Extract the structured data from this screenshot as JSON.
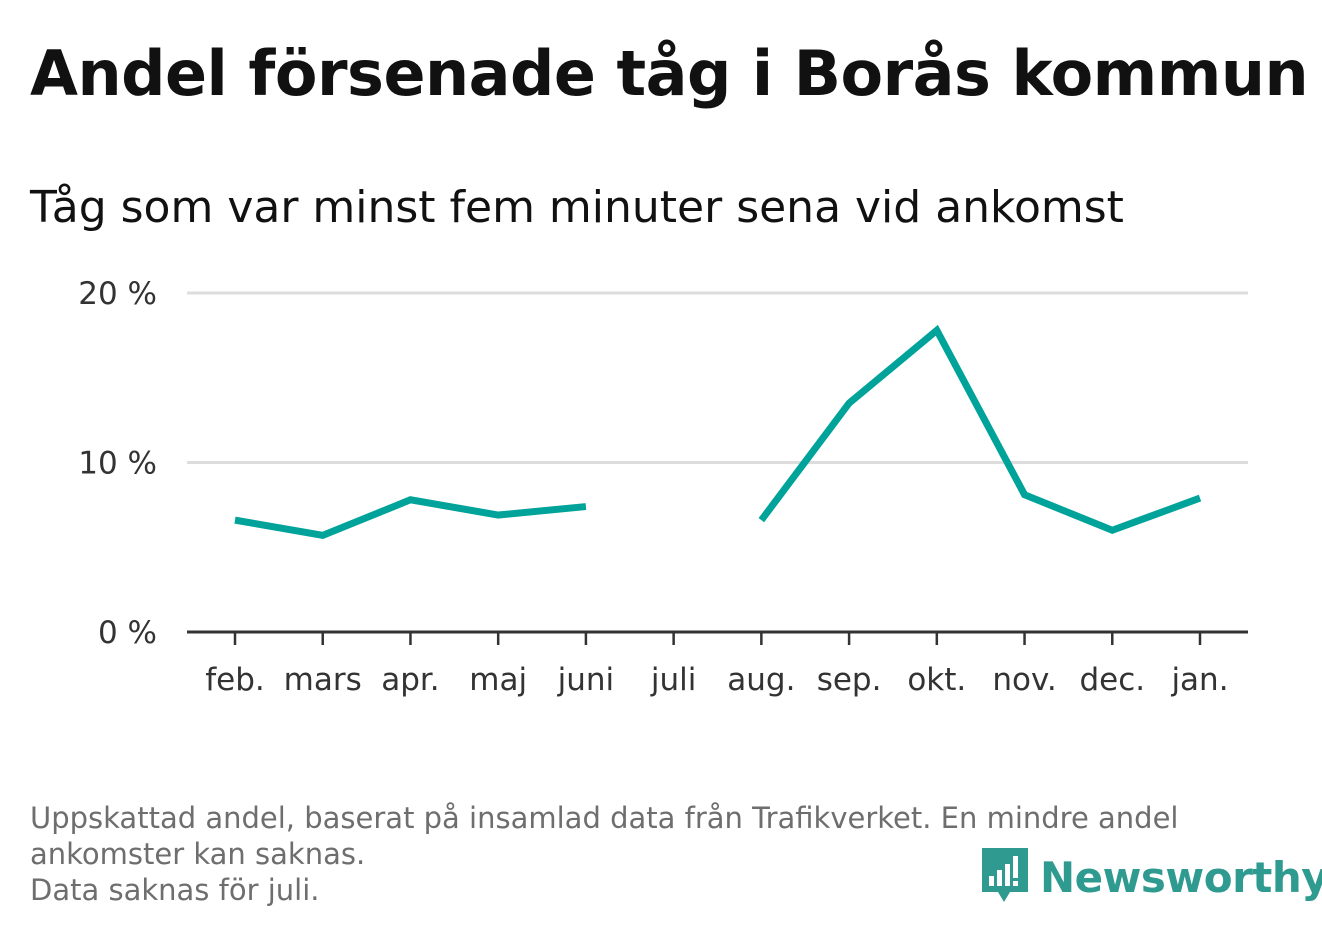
{
  "header": {
    "title": "Andel försenade tåg i Borås kommun",
    "subtitle": "Tåg som var minst fem minuter sena vid ankomst"
  },
  "chart_data": {
    "type": "line",
    "categories": [
      "feb.",
      "mars",
      "apr.",
      "maj",
      "juni",
      "juli",
      "aug.",
      "sep.",
      "okt.",
      "nov.",
      "dec.",
      "jan."
    ],
    "series": [
      {
        "values": [
          6.6,
          5.7,
          7.8,
          6.9,
          7.4,
          null,
          6.6,
          13.5,
          17.8,
          8.1,
          6.0,
          7.9
        ]
      }
    ],
    "yticks": [
      0,
      10,
      20
    ],
    "ytick_labels": [
      "0 %",
      "10 %",
      "20 %"
    ],
    "ylim": [
      0,
      20
    ],
    "grid": true,
    "line_color": "#00a39a",
    "grid_color": "#dddddd",
    "axis_color": "#333333"
  },
  "footnote": {
    "line1": "Uppskattad andel, baserat på insamlad data från Trafikverket. En mindre andel",
    "line2": "ankomster kan saknas.",
    "line3": "Data saknas för juli."
  },
  "brand": {
    "name": "Newsworthy",
    "icon": "newsworthy-logo-icon",
    "color": "#2e9a90"
  }
}
